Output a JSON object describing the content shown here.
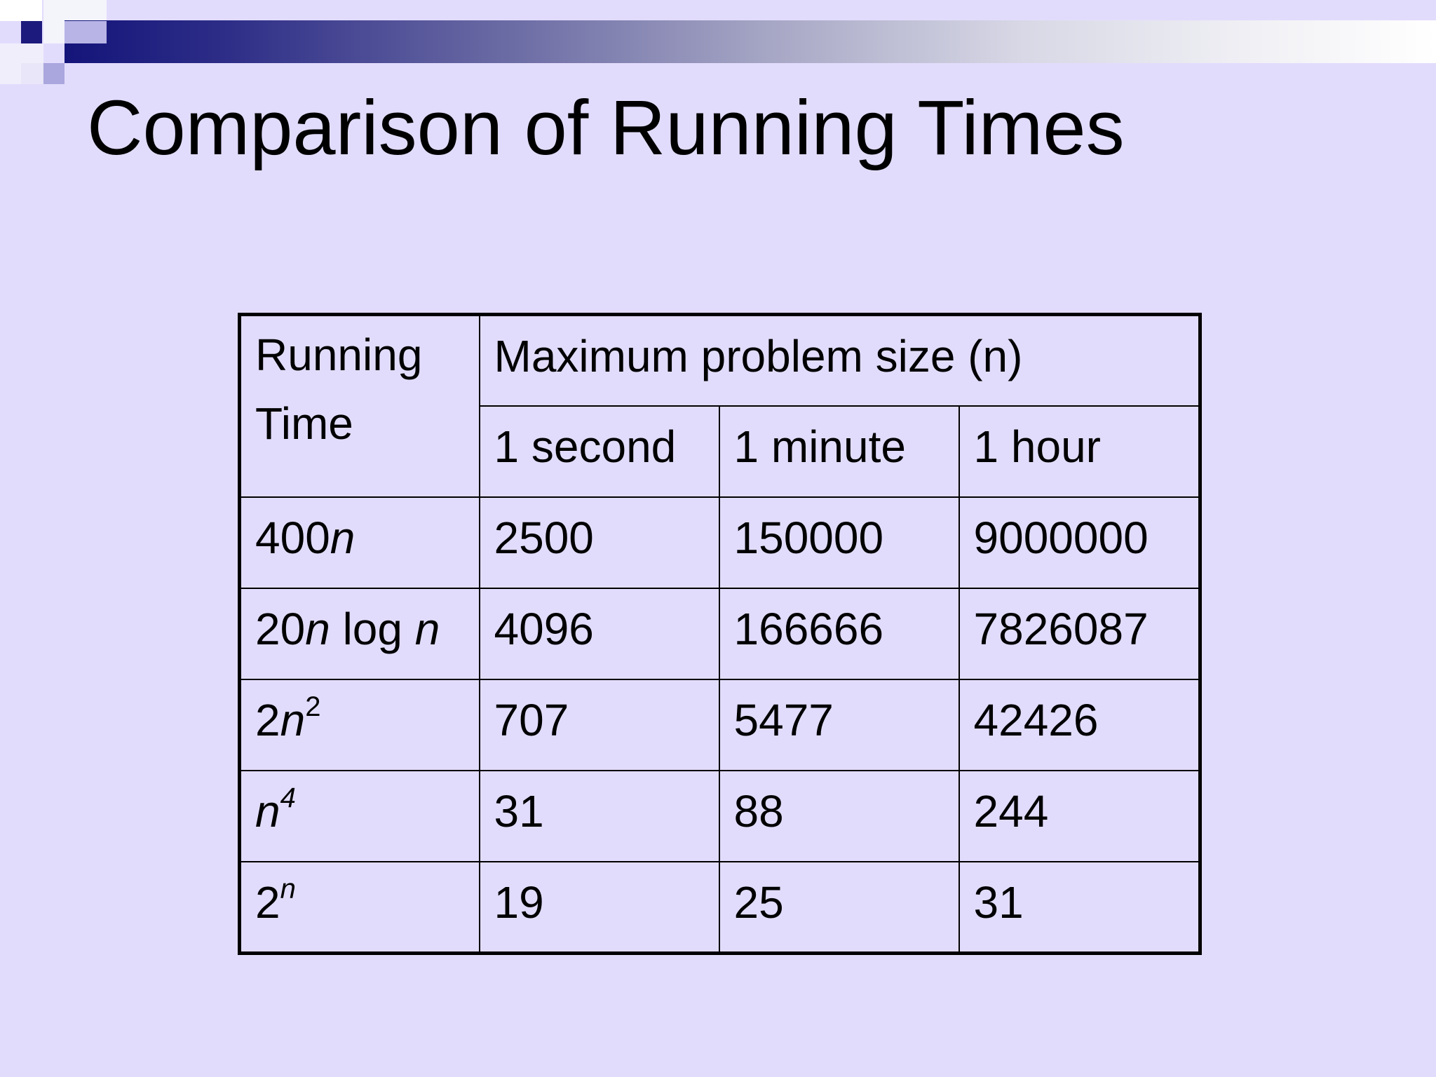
{
  "title": "Comparison of Running Times",
  "table": {
    "corner_header_line1": "Running",
    "corner_header_line2": "Time",
    "group_header": "Maximum problem size (n)",
    "columns": [
      "1 second",
      "1 minute",
      "1 hour"
    ],
    "rows": [
      {
        "running_time": {
          "base": "400",
          "var": "n",
          "sup": "",
          "tail": ""
        },
        "values": [
          "2500",
          "150000",
          "9000000"
        ]
      },
      {
        "running_time": {
          "base": "20",
          "var": "n",
          "mid": " log ",
          "var2": "n"
        },
        "values": [
          "4096",
          "166666",
          "7826087"
        ]
      },
      {
        "running_time": {
          "base": "2",
          "var": "n",
          "sup": "2"
        },
        "values": [
          "707",
          "5477",
          "42426"
        ]
      },
      {
        "running_time": {
          "base": "",
          "var": "n",
          "sup": "4"
        },
        "values": [
          "31",
          "88",
          "244"
        ]
      },
      {
        "running_time": {
          "base": "2",
          "var": "",
          "sup": "n"
        },
        "values": [
          "19",
          "25",
          "31"
        ]
      }
    ]
  },
  "colors": {
    "background": "#e2dcfc",
    "header_bar_start": "#14147a",
    "text": "#000000"
  }
}
